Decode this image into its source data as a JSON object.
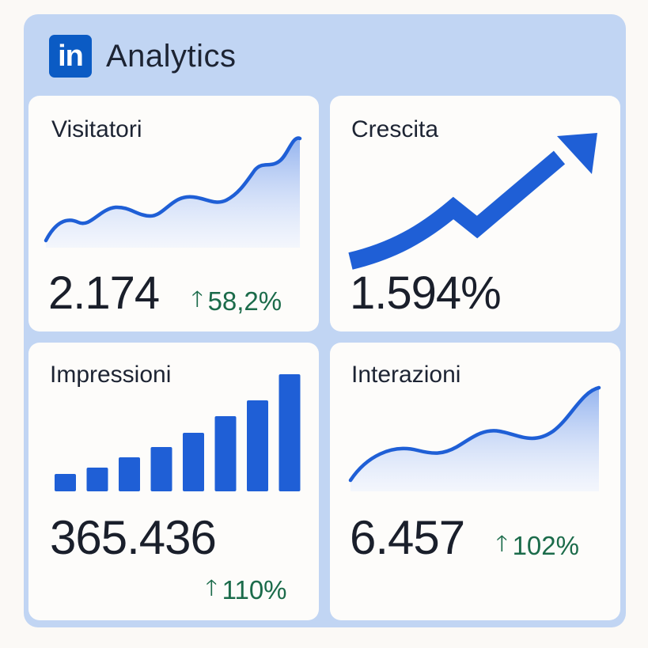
{
  "app": {
    "logo_text": "in",
    "title": "Analytics"
  },
  "cards": {
    "visitors": {
      "title": "Visitatori",
      "value": "2.174",
      "delta": "58,2%"
    },
    "growth": {
      "title": "Crescita",
      "value": "1.594%"
    },
    "impressions": {
      "title": "Impressioni",
      "value": "365.436",
      "delta": "110%",
      "bar_levels": [
        0.15,
        0.2,
        0.29,
        0.38,
        0.5,
        0.64,
        0.78,
        1.0
      ]
    },
    "interactions": {
      "title": "Interazioni",
      "value": "6.457",
      "delta": "102%"
    }
  },
  "colors": {
    "accent_blue": "#1f5fd6",
    "positive_green": "#1b6b4a",
    "panel_bg": "#c1d5f3",
    "card_bg": "#fdfcfa"
  },
  "icons": {
    "delta_arrow": "arrow-up-icon",
    "logo": "linkedin-logo-icon"
  }
}
